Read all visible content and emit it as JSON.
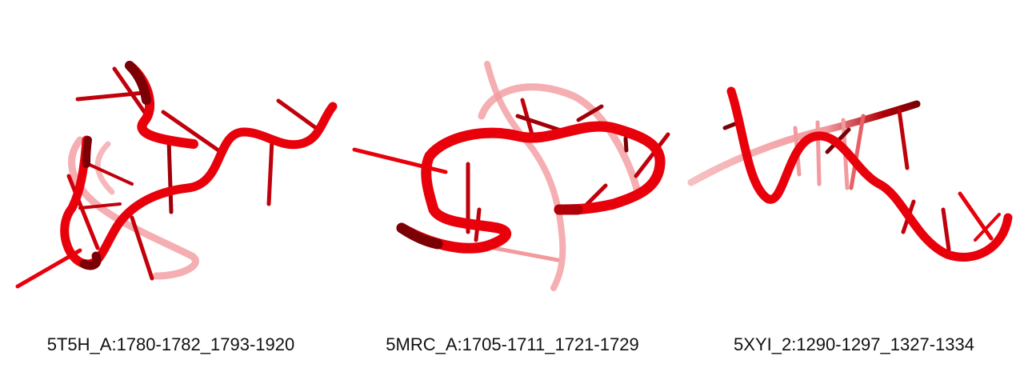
{
  "panels": [
    {
      "caption": "5T5H_A:1780-1782_1793-1920",
      "structure": "rna-cartoon"
    },
    {
      "caption": "5MRC_A:1705-1711_1721-1729",
      "structure": "rna-cartoon"
    },
    {
      "caption": "5XYI_2:1290-1297_1327-1334",
      "structure": "rna-cartoon"
    }
  ],
  "colors": {
    "backbone": "#e8000b",
    "dark": "#7a0006",
    "faded": "#f29a9e"
  }
}
